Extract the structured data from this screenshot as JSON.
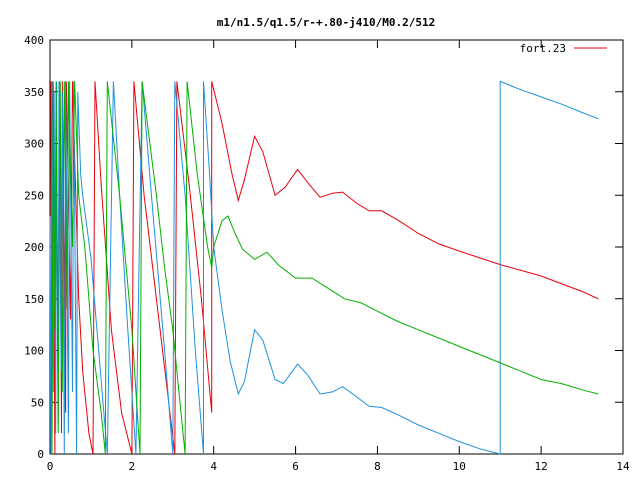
{
  "chart_data": {
    "type": "line",
    "title": "m1/n1.5/q1.5/r-+.80-j410/M0.2/512",
    "xlabel": "",
    "ylabel": "",
    "xlim": [
      0,
      14
    ],
    "ylim": [
      0,
      400
    ],
    "x_ticks": [
      0,
      2,
      4,
      6,
      8,
      10,
      12,
      14
    ],
    "y_ticks": [
      0,
      50,
      100,
      150,
      200,
      250,
      300,
      350,
      400
    ],
    "grid": false,
    "legend": {
      "position": "top-right",
      "entries": [
        {
          "label": "fort.23",
          "color": "#e8000b"
        }
      ]
    },
    "series": [
      {
        "color": "#e8000b",
        "label": "fort.23",
        "points": [
          [
            0.02,
            360
          ],
          [
            0.05,
            0
          ],
          [
            0.06,
            360
          ],
          [
            0.12,
            0
          ],
          [
            0.15,
            355
          ],
          [
            0.2,
            30
          ],
          [
            0.23,
            360
          ],
          [
            0.28,
            20
          ],
          [
            0.3,
            360
          ],
          [
            0.38,
            40
          ],
          [
            0.4,
            360
          ],
          [
            0.5,
            130
          ],
          [
            0.55,
            360
          ],
          [
            0.7,
            150
          ],
          [
            0.8,
            80
          ],
          [
            0.95,
            20
          ],
          [
            1.05,
            0
          ],
          [
            1.1,
            360
          ],
          [
            1.25,
            260
          ],
          [
            1.5,
            120
          ],
          [
            1.75,
            40
          ],
          [
            2.0,
            0
          ],
          [
            2.05,
            360
          ],
          [
            2.3,
            250
          ],
          [
            2.6,
            150
          ],
          [
            2.9,
            50
          ],
          [
            3.05,
            0
          ],
          [
            3.1,
            360
          ],
          [
            3.4,
            260
          ],
          [
            3.7,
            150
          ],
          [
            3.95,
            40
          ],
          [
            3.95,
            360
          ],
          [
            4.2,
            320
          ],
          [
            4.45,
            270
          ],
          [
            4.6,
            245
          ],
          [
            4.75,
            265
          ],
          [
            5.0,
            307
          ],
          [
            5.2,
            292
          ],
          [
            5.5,
            250
          ],
          [
            5.75,
            258
          ],
          [
            6.05,
            275
          ],
          [
            6.3,
            262
          ],
          [
            6.6,
            248
          ],
          [
            6.9,
            252
          ],
          [
            7.15,
            253
          ],
          [
            7.5,
            242
          ],
          [
            7.8,
            235
          ],
          [
            8.1,
            235
          ],
          [
            8.5,
            226
          ],
          [
            9.0,
            213
          ],
          [
            9.5,
            203
          ],
          [
            10.0,
            196
          ],
          [
            11.0,
            183
          ],
          [
            12.0,
            172
          ],
          [
            13.0,
            157
          ],
          [
            13.4,
            150
          ]
        ]
      },
      {
        "color": "#2090e0",
        "label": "",
        "points": [
          [
            0.0,
            230
          ],
          [
            0.02,
            0
          ],
          [
            0.05,
            360
          ],
          [
            0.08,
            60
          ],
          [
            0.1,
            350
          ],
          [
            0.14,
            20
          ],
          [
            0.16,
            360
          ],
          [
            0.2,
            40
          ],
          [
            0.22,
            360
          ],
          [
            0.27,
            80
          ],
          [
            0.3,
            350
          ],
          [
            0.35,
            0
          ],
          [
            0.38,
            360
          ],
          [
            0.45,
            20
          ],
          [
            0.48,
            360
          ],
          [
            0.55,
            60
          ],
          [
            0.58,
            360
          ],
          [
            0.65,
            0
          ],
          [
            0.68,
            350
          ],
          [
            0.75,
            270
          ],
          [
            0.8,
            250
          ],
          [
            1.0,
            190
          ],
          [
            1.2,
            95
          ],
          [
            1.4,
            0
          ],
          [
            1.55,
            360
          ],
          [
            1.7,
            250
          ],
          [
            1.9,
            120
          ],
          [
            2.1,
            0
          ],
          [
            2.25,
            360
          ],
          [
            2.5,
            240
          ],
          [
            2.8,
            100
          ],
          [
            3.0,
            0
          ],
          [
            3.05,
            360
          ],
          [
            3.3,
            250
          ],
          [
            3.55,
            100
          ],
          [
            3.75,
            0
          ],
          [
            3.75,
            360
          ],
          [
            3.9,
            270
          ],
          [
            4.0,
            200
          ],
          [
            4.2,
            140
          ],
          [
            4.4,
            90
          ],
          [
            4.6,
            58
          ],
          [
            4.75,
            70
          ],
          [
            5.0,
            120
          ],
          [
            5.2,
            110
          ],
          [
            5.5,
            72
          ],
          [
            5.7,
            68
          ],
          [
            6.05,
            87
          ],
          [
            6.3,
            76
          ],
          [
            6.6,
            58
          ],
          [
            6.9,
            60
          ],
          [
            7.15,
            65
          ],
          [
            7.5,
            55
          ],
          [
            7.8,
            46
          ],
          [
            8.1,
            45
          ],
          [
            8.5,
            38
          ],
          [
            9.0,
            28
          ],
          [
            9.5,
            20
          ],
          [
            10.0,
            12
          ],
          [
            10.5,
            5
          ],
          [
            11.0,
            0
          ],
          [
            11.0,
            360
          ],
          [
            11.5,
            352
          ],
          [
            12.0,
            345
          ],
          [
            12.5,
            338
          ],
          [
            13.0,
            330
          ],
          [
            13.4,
            324
          ]
        ]
      },
      {
        "color": "#00b000",
        "label": "",
        "points": [
          [
            0.05,
            0
          ],
          [
            0.08,
            360
          ],
          [
            0.12,
            120
          ],
          [
            0.15,
            360
          ],
          [
            0.2,
            20
          ],
          [
            0.25,
            360
          ],
          [
            0.3,
            60
          ],
          [
            0.35,
            360
          ],
          [
            0.42,
            140
          ],
          [
            0.45,
            360
          ],
          [
            0.55,
            200
          ],
          [
            0.6,
            360
          ],
          [
            0.7,
            250
          ],
          [
            0.85,
            200
          ],
          [
            1.05,
            100
          ],
          [
            1.25,
            40
          ],
          [
            1.35,
            0
          ],
          [
            1.4,
            360
          ],
          [
            1.7,
            250
          ],
          [
            2.0,
            120
          ],
          [
            2.2,
            0
          ],
          [
            2.25,
            360
          ],
          [
            2.6,
            250
          ],
          [
            2.8,
            180
          ],
          [
            3.0,
            120
          ],
          [
            3.2,
            40
          ],
          [
            3.3,
            0
          ],
          [
            3.35,
            360
          ],
          [
            3.6,
            270
          ],
          [
            3.85,
            200
          ],
          [
            3.95,
            180
          ],
          [
            4.0,
            200
          ],
          [
            4.2,
            225
          ],
          [
            4.35,
            230
          ],
          [
            4.5,
            215
          ],
          [
            4.7,
            198
          ],
          [
            5.0,
            188
          ],
          [
            5.3,
            195
          ],
          [
            5.6,
            182
          ],
          [
            6.0,
            170
          ],
          [
            6.4,
            170
          ],
          [
            6.8,
            160
          ],
          [
            7.2,
            150
          ],
          [
            7.6,
            146
          ],
          [
            8.0,
            138
          ],
          [
            8.5,
            128
          ],
          [
            9.0,
            120
          ],
          [
            9.5,
            112
          ],
          [
            10.0,
            104
          ],
          [
            10.5,
            96
          ],
          [
            11.0,
            88
          ],
          [
            11.5,
            80
          ],
          [
            12.0,
            72
          ],
          [
            12.5,
            68
          ],
          [
            13.0,
            62
          ],
          [
            13.4,
            58
          ]
        ]
      }
    ]
  }
}
